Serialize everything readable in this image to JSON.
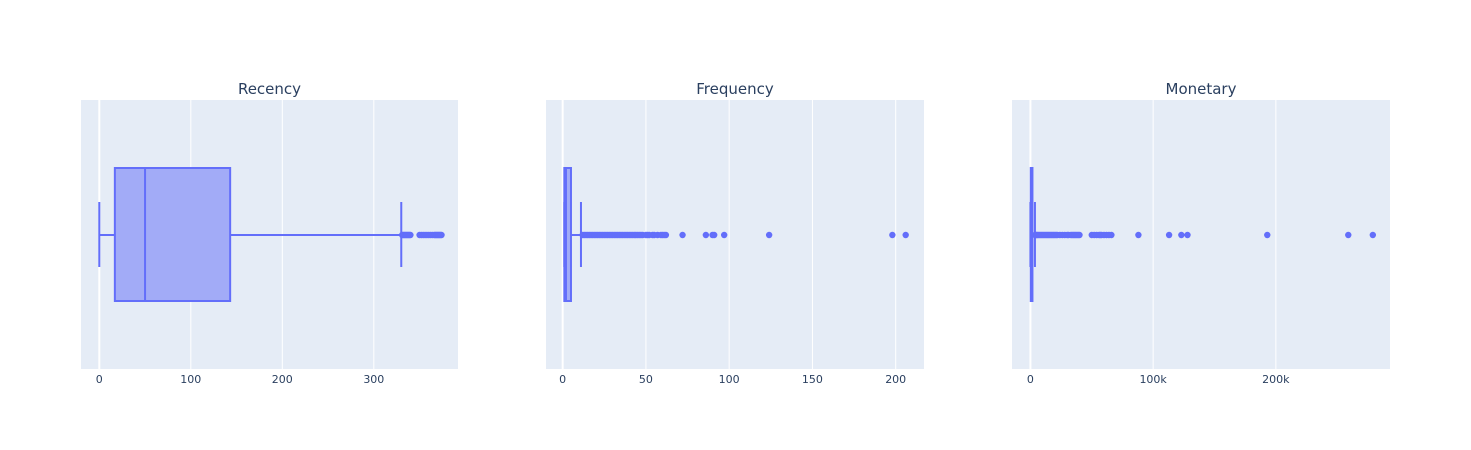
{
  "colors": {
    "plot_background": "#E5ECF6",
    "gridline": "#FFFFFF",
    "box_line": "#636EFA",
    "box_fill": "#A2ABF7",
    "outlier": "#636EFA",
    "text": "#2a3f5f"
  },
  "chart_data": [
    {
      "type": "box",
      "orientation": "horizontal",
      "title": "Recency",
      "xlim": [
        -20,
        392
      ],
      "xticks": [
        {
          "value": 0,
          "label": "0"
        },
        {
          "value": 100,
          "label": "100"
        },
        {
          "value": 200,
          "label": "200"
        },
        {
          "value": 300,
          "label": "300"
        }
      ],
      "grid": true,
      "legend": "none",
      "stats": {
        "lower_fence": 0,
        "q1": 17,
        "median": 50,
        "q3": 143,
        "upper_fence": 330
      },
      "outliers": [
        331,
        332,
        333,
        334,
        335,
        336,
        337,
        338,
        339,
        340,
        350,
        352,
        354,
        356,
        358,
        360,
        362,
        364,
        366,
        367,
        368,
        369,
        370,
        371,
        372,
        373,
        374
      ]
    },
    {
      "type": "box",
      "orientation": "horizontal",
      "title": "Frequency",
      "xlim": [
        -10,
        217
      ],
      "xticks": [
        {
          "value": 0,
          "label": "0"
        },
        {
          "value": 50,
          "label": "50"
        },
        {
          "value": 100,
          "label": "100"
        },
        {
          "value": 150,
          "label": "150"
        },
        {
          "value": 200,
          "label": "200"
        }
      ],
      "grid": true,
      "legend": "none",
      "stats": {
        "lower_fence": 1,
        "q1": 1,
        "median": 2,
        "q3": 5,
        "upper_fence": 11
      },
      "outliers": [
        12,
        13,
        14,
        15,
        16,
        17,
        18,
        19,
        20,
        21,
        22,
        23,
        24,
        25,
        26,
        27,
        28,
        29,
        30,
        31,
        32,
        33,
        34,
        35,
        36,
        37,
        38,
        39,
        40,
        41,
        42,
        43,
        44,
        45,
        46,
        47,
        48,
        50,
        51,
        52,
        54,
        55,
        57,
        59,
        60,
        61,
        62,
        72,
        86,
        90,
        91,
        97,
        124,
        198,
        206
      ]
    },
    {
      "type": "box",
      "orientation": "horizontal",
      "title": "Monetary",
      "xlim": [
        -15000,
        293000
      ],
      "xticks": [
        {
          "value": 0,
          "label": "0"
        },
        {
          "value": 100000,
          "label": "100k"
        },
        {
          "value": 200000,
          "label": "200k"
        }
      ],
      "grid": true,
      "legend": "none",
      "stats": {
        "lower_fence": 0,
        "q1": 300,
        "median": 670,
        "q3": 1660,
        "upper_fence": 3700
      },
      "outliers": [
        4000,
        4600,
        5200,
        6000,
        7000,
        8000,
        9000,
        10000,
        11000,
        12000,
        13000,
        14000,
        15000,
        16000,
        17000,
        18000,
        19000,
        20000,
        21000,
        22000,
        24000,
        26000,
        28000,
        30000,
        31000,
        33000,
        34000,
        35000,
        36000,
        37000,
        38000,
        39000,
        40000,
        50000,
        52000,
        54000,
        56000,
        57000,
        58000,
        60000,
        62000,
        64000,
        66000,
        88000,
        113000,
        123000,
        128000,
        193000,
        259000,
        279000
      ]
    }
  ]
}
